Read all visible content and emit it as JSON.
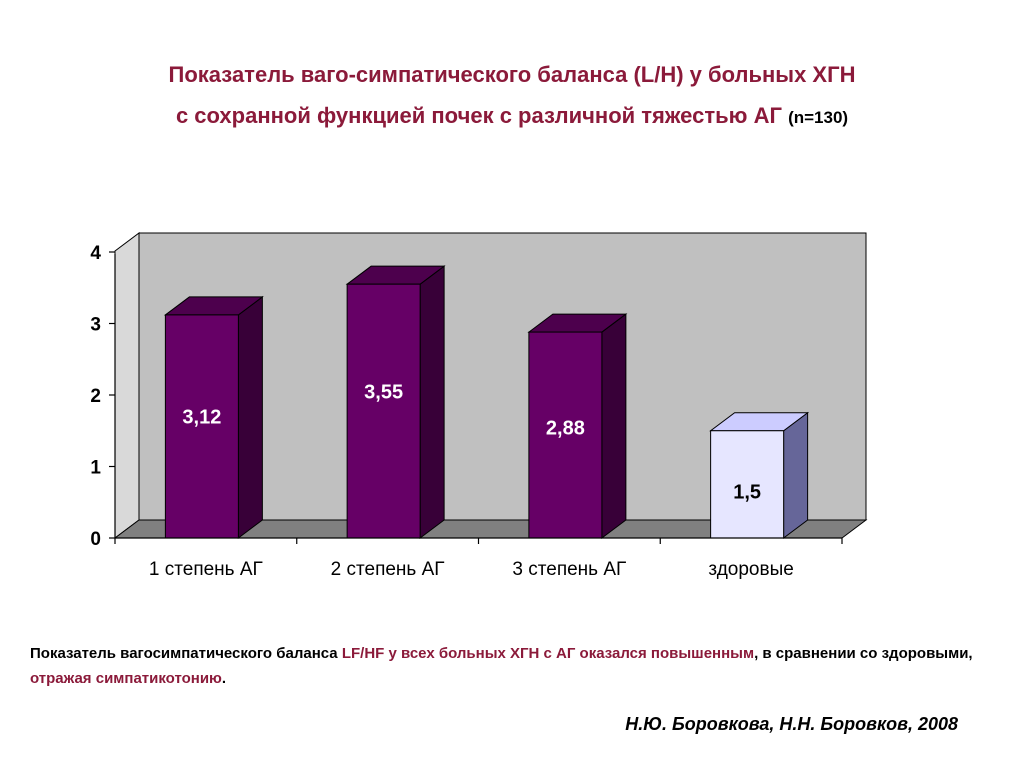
{
  "title": {
    "line1": "Показатель ваго-симпатического баланса (L/H) у больных ХГН",
    "line2": "с сохранной функцией почек с различной тяжестью АГ",
    "n": "(n=130)"
  },
  "chart_data": {
    "type": "bar",
    "categories": [
      "1 степень АГ",
      "2 степень АГ",
      "3 степень АГ",
      "здоровые"
    ],
    "values": [
      3.12,
      3.55,
      2.88,
      1.5
    ],
    "data_labels": [
      "3,12",
      "3,55",
      "2,88",
      "1,5"
    ],
    "yticks": [
      "0",
      "1",
      "2",
      "3",
      "4"
    ],
    "ylim": [
      0,
      4
    ],
    "colors": [
      "#660066",
      "#660066",
      "#660066",
      "#e6e6ff"
    ],
    "label_colors": [
      "#ffffff",
      "#ffffff",
      "#ffffff",
      "#000000"
    ],
    "wall_color": "#c0c0c0",
    "floor_color": "#808080",
    "grid": false,
    "legend": false
  },
  "note": {
    "part1": "Показатель вагосимпатического баланса ",
    "part2": "LF/HF у всех больных ХГН с АГ оказался повышенным",
    "part3": ", в сравнении со здоровыми, ",
    "part4": "отражая симпатикотонию",
    "part5": "."
  },
  "author": "Н.Ю. Боровкова, Н.Н. Боровков, 2008"
}
